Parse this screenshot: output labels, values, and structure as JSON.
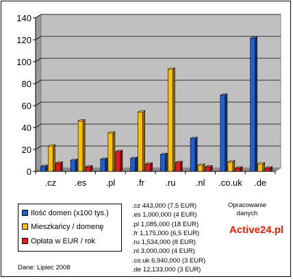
{
  "colors": {
    "plot_bg": "#c0c0c0",
    "domains": "#1f5fd0",
    "residents": "#ffc000",
    "fee": "#e8181c",
    "brand": "#ee1c00"
  },
  "chart_data": {
    "type": "bar",
    "categories": [
      ".cz",
      ".es",
      ".pl",
      ".fr",
      ".ru",
      ".nl",
      ".co.uk",
      ".de"
    ],
    "ylim": [
      0,
      140
    ],
    "yticks": [
      "0",
      "20",
      "40",
      "60",
      "80",
      "100",
      "120",
      "140"
    ],
    "grid": true,
    "legend_position": "bottom-left",
    "series": [
      {
        "name": "Ilość domen (x100 tys.)",
        "values": [
          4.4,
          10,
          10.9,
          11.8,
          15.3,
          30,
          69.4,
          121.3
        ]
      },
      {
        "name": "Mieszkańcy / domenę",
        "values": [
          23,
          46,
          35,
          54,
          93,
          5.5,
          8.5,
          6.8
        ]
      },
      {
        "name": "Opłata w EUR / rok",
        "values": [
          7.5,
          4,
          18,
          6.5,
          8,
          4,
          3,
          3
        ]
      }
    ]
  },
  "summary_lines": [
    ".cz 443,000 (7,5 EUR)",
    ".es 1,000,000 (4 EUR)",
    ".pl 1,085,000 (18 EUR)",
    ".fr 1,175,000 (6,5 EUR)",
    ".ru 1,534,000 (8 EUR)",
    ".nl 3,000,000 (4 EUR)",
    ".co.uk 6,940,000 (3 EUR)",
    ".de 12,133,000 (3 EUR)"
  ],
  "source_label": "Opracowanie danych",
  "brand": "Active24.pl",
  "date_label": "Dane: Lipiec 2008"
}
